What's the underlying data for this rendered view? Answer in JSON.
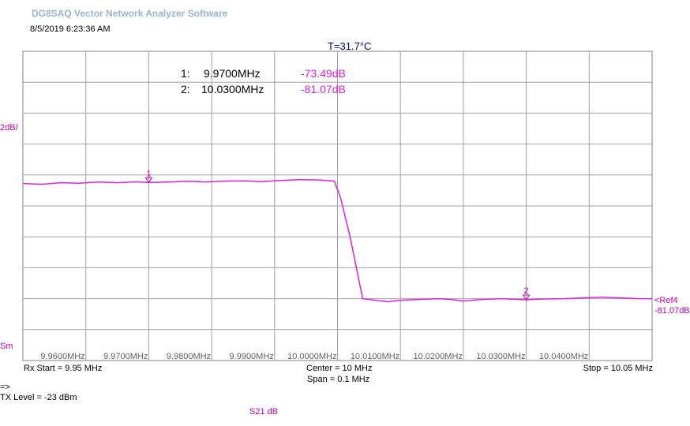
{
  "app": {
    "title": "DG8SAQ Vector Network Analyzer Software",
    "timestamp": "8/5/2019   6:23:36 AM",
    "temperature": "T=31.7°C"
  },
  "side_labels": {
    "scale": "2dB/",
    "smooth": "Sm",
    "ref_label": "<Ref4",
    "ref_value": "-81.07dB"
  },
  "footer": {
    "rx_start": "Rx Start = 9.95 MHz",
    "center": "Center = 10 MHz",
    "span": "Span = 0.1 MHz",
    "stop": "Stop = 10.05 MHz",
    "prompt": "=>",
    "tx_level": "TX Level = -23 dBm",
    "trace_name": "S21  dB"
  },
  "markers": [
    {
      "id": "1",
      "freq": "9.9700MHz",
      "value": "-73.49dB",
      "x": 9.97,
      "y": -73.49
    },
    {
      "id": "2",
      "freq": "10.0300MHz",
      "value": "-81.07dB",
      "x": 10.03,
      "y": -81.07
    }
  ],
  "colors": {
    "trace": "#e020e0",
    "grid": "#a0a0a0",
    "marker_label": "#c000c0",
    "temperature": "#000080"
  },
  "chart_data": {
    "type": "line",
    "xlabel": "",
    "ylabel": "",
    "x_tick_labels": [
      "9.9600MHz",
      "9.9700MHz",
      "9.9800MHz",
      "9.9900MHz",
      "10.0000MHz",
      "10.0100MHz",
      "10.0200MHz",
      "10.0300MHz",
      "10.0400MHz"
    ],
    "x_ticks": [
      9.96,
      9.97,
      9.98,
      9.99,
      10.0,
      10.01,
      10.02,
      10.03,
      10.04
    ],
    "xlim": [
      9.95,
      10.05
    ],
    "ylim": [
      -85,
      -65
    ],
    "grid": true,
    "series": [
      {
        "name": "S21  dB",
        "points": [
          [
            9.95,
            -73.55
          ],
          [
            9.953,
            -73.6
          ],
          [
            9.956,
            -73.5
          ],
          [
            9.959,
            -73.53
          ],
          [
            9.962,
            -73.45
          ],
          [
            9.965,
            -73.5
          ],
          [
            9.968,
            -73.44
          ],
          [
            9.97,
            -73.49
          ],
          [
            9.973,
            -73.46
          ],
          [
            9.976,
            -73.41
          ],
          [
            9.979,
            -73.45
          ],
          [
            9.982,
            -73.4
          ],
          [
            9.985,
            -73.38
          ],
          [
            9.988,
            -73.43
          ],
          [
            9.991,
            -73.35
          ],
          [
            9.994,
            -73.3
          ],
          [
            9.997,
            -73.32
          ],
          [
            9.9995,
            -73.4
          ],
          [
            10.0005,
            -74.5
          ],
          [
            10.002,
            -77.0
          ],
          [
            10.003,
            -79.0
          ],
          [
            10.004,
            -81.0
          ],
          [
            10.006,
            -81.1
          ],
          [
            10.008,
            -81.2
          ],
          [
            10.01,
            -81.1
          ],
          [
            10.013,
            -81.05
          ],
          [
            10.016,
            -81.0
          ],
          [
            10.018,
            -81.05
          ],
          [
            10.02,
            -81.15
          ],
          [
            10.023,
            -81.05
          ],
          [
            10.026,
            -81.0
          ],
          [
            10.03,
            -81.07
          ],
          [
            10.033,
            -81.02
          ],
          [
            10.036,
            -81.0
          ],
          [
            10.039,
            -80.95
          ],
          [
            10.042,
            -80.9
          ],
          [
            10.045,
            -80.95
          ],
          [
            10.048,
            -81.0
          ],
          [
            10.05,
            -81.0
          ]
        ]
      }
    ]
  }
}
